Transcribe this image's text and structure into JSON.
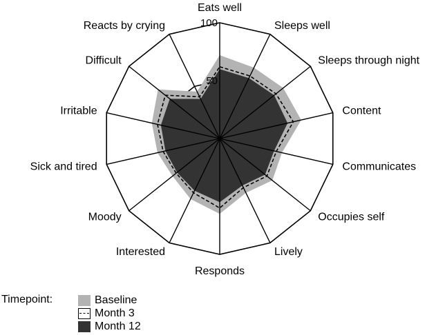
{
  "chart_data": {
    "type": "radar",
    "axes": [
      "Eats well",
      "Sleeps well",
      "Sleeps through night",
      "Content",
      "Communicates",
      "Occupies self",
      "Lively",
      "Responds",
      "Interested",
      "Moody",
      "Sick and tired",
      "Irritable",
      "Difficult",
      "Reacts by crying"
    ],
    "range": [
      0,
      100
    ],
    "ticks": [
      50,
      100
    ],
    "legend_title": "Timepoint:",
    "series": [
      {
        "name": "Baseline",
        "style": "filled-light-gray",
        "color": "#b3b3b3",
        "values": [
          72,
          68,
          70,
          72,
          55,
          58,
          52,
          65,
          58,
          52,
          55,
          60,
          68,
          45
        ]
      },
      {
        "name": "Month 3",
        "style": "dashed-line",
        "color": "#000000",
        "values": [
          62,
          60,
          62,
          65,
          50,
          52,
          47,
          60,
          52,
          48,
          50,
          55,
          60,
          40
        ]
      },
      {
        "name": "Month 12",
        "style": "filled-dark-gray",
        "color": "#333333",
        "values": [
          60,
          58,
          60,
          60,
          48,
          50,
          45,
          55,
          50,
          47,
          48,
          52,
          55,
          38
        ]
      }
    ]
  }
}
